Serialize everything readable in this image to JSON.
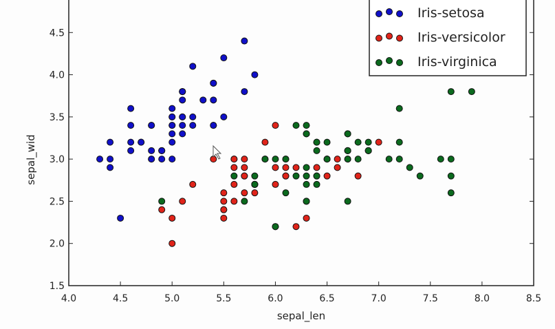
{
  "chart_data": {
    "type": "scatter",
    "title": "",
    "xlabel": "sepal_len",
    "ylabel": "sepal_wid",
    "xlim": [
      4.0,
      8.5
    ],
    "ylim": [
      1.5,
      5.0
    ],
    "xticks": [
      "4.0",
      "4.5",
      "5.0",
      "5.5",
      "6.0",
      "6.5",
      "7.0",
      "7.5",
      "8.0",
      "8.5"
    ],
    "yticks": [
      "1.5",
      "2.0",
      "2.5",
      "3.0",
      "3.5",
      "4.0",
      "4.5"
    ],
    "legend_position": "top-right",
    "series": [
      {
        "name": "Iris-setosa",
        "color": "#1010c8",
        "points": [
          [
            5.1,
            3.5
          ],
          [
            4.9,
            3.0
          ],
          [
            4.7,
            3.2
          ],
          [
            4.6,
            3.1
          ],
          [
            5.0,
            3.6
          ],
          [
            5.4,
            3.9
          ],
          [
            4.6,
            3.4
          ],
          [
            5.0,
            3.4
          ],
          [
            4.4,
            2.9
          ],
          [
            4.9,
            3.1
          ],
          [
            5.4,
            3.7
          ],
          [
            4.8,
            3.4
          ],
          [
            4.8,
            3.0
          ],
          [
            4.3,
            3.0
          ],
          [
            5.8,
            4.0
          ],
          [
            5.7,
            4.4
          ],
          [
            5.4,
            3.9
          ],
          [
            5.1,
            3.5
          ],
          [
            5.7,
            3.8
          ],
          [
            5.1,
            3.8
          ],
          [
            5.4,
            3.4
          ],
          [
            5.1,
            3.7
          ],
          [
            4.6,
            3.6
          ],
          [
            5.1,
            3.3
          ],
          [
            4.8,
            3.4
          ],
          [
            5.0,
            3.0
          ],
          [
            5.0,
            3.4
          ],
          [
            5.2,
            3.5
          ],
          [
            5.2,
            3.4
          ],
          [
            4.7,
            3.2
          ],
          [
            4.8,
            3.1
          ],
          [
            5.4,
            3.4
          ],
          [
            5.2,
            4.1
          ],
          [
            5.5,
            4.2
          ],
          [
            4.9,
            3.1
          ],
          [
            5.0,
            3.2
          ],
          [
            5.5,
            3.5
          ],
          [
            4.9,
            3.1
          ],
          [
            4.4,
            3.0
          ],
          [
            5.1,
            3.4
          ],
          [
            5.0,
            3.5
          ],
          [
            4.5,
            2.3
          ],
          [
            4.4,
            3.2
          ],
          [
            5.0,
            3.5
          ],
          [
            5.1,
            3.8
          ],
          [
            4.8,
            3.0
          ],
          [
            5.1,
            3.8
          ],
          [
            4.6,
            3.2
          ],
          [
            5.3,
            3.7
          ],
          [
            5.0,
            3.3
          ]
        ]
      },
      {
        "name": "Iris-versicolor",
        "color": "#e0241a",
        "points": [
          [
            7.0,
            3.2
          ],
          [
            6.4,
            3.2
          ],
          [
            6.9,
            3.1
          ],
          [
            5.5,
            2.3
          ],
          [
            6.5,
            2.8
          ],
          [
            5.7,
            2.8
          ],
          [
            6.3,
            3.3
          ],
          [
            4.9,
            2.4
          ],
          [
            6.6,
            2.9
          ],
          [
            5.2,
            2.7
          ],
          [
            5.0,
            2.0
          ],
          [
            5.9,
            3.0
          ],
          [
            6.0,
            2.2
          ],
          [
            6.1,
            2.9
          ],
          [
            5.6,
            2.9
          ],
          [
            6.7,
            3.1
          ],
          [
            5.6,
            3.0
          ],
          [
            5.8,
            2.7
          ],
          [
            6.2,
            2.2
          ],
          [
            5.6,
            2.5
          ],
          [
            5.9,
            3.2
          ],
          [
            6.1,
            2.8
          ],
          [
            6.3,
            2.5
          ],
          [
            6.1,
            2.8
          ],
          [
            6.4,
            2.9
          ],
          [
            6.6,
            3.0
          ],
          [
            6.8,
            2.8
          ],
          [
            6.7,
            3.0
          ],
          [
            6.0,
            2.9
          ],
          [
            5.7,
            2.6
          ],
          [
            5.5,
            2.4
          ],
          [
            5.5,
            2.4
          ],
          [
            5.8,
            2.7
          ],
          [
            6.0,
            2.7
          ],
          [
            5.4,
            3.0
          ],
          [
            6.0,
            3.4
          ],
          [
            6.7,
            3.1
          ],
          [
            6.3,
            2.3
          ],
          [
            5.6,
            3.0
          ],
          [
            5.5,
            2.5
          ],
          [
            5.5,
            2.6
          ],
          [
            6.1,
            3.0
          ],
          [
            5.8,
            2.6
          ],
          [
            5.0,
            2.3
          ],
          [
            5.6,
            2.7
          ],
          [
            5.7,
            3.0
          ],
          [
            5.7,
            2.9
          ],
          [
            6.2,
            2.9
          ],
          [
            5.1,
            2.5
          ],
          [
            5.7,
            2.8
          ]
        ]
      },
      {
        "name": "Iris-virginica",
        "color": "#0b6a1e",
        "points": [
          [
            6.3,
            3.3
          ],
          [
            5.8,
            2.7
          ],
          [
            7.1,
            3.0
          ],
          [
            6.3,
            2.9
          ],
          [
            6.5,
            3.0
          ],
          [
            7.6,
            3.0
          ],
          [
            4.9,
            2.5
          ],
          [
            7.3,
            2.9
          ],
          [
            6.7,
            2.5
          ],
          [
            7.2,
            3.6
          ],
          [
            6.5,
            3.2
          ],
          [
            6.4,
            2.7
          ],
          [
            6.8,
            3.0
          ],
          [
            5.7,
            2.5
          ],
          [
            5.8,
            2.8
          ],
          [
            6.4,
            3.2
          ],
          [
            6.5,
            3.0
          ],
          [
            7.7,
            3.8
          ],
          [
            7.7,
            2.6
          ],
          [
            6.0,
            2.2
          ],
          [
            6.9,
            3.2
          ],
          [
            5.6,
            2.8
          ],
          [
            7.7,
            2.8
          ],
          [
            6.3,
            2.7
          ],
          [
            6.7,
            3.3
          ],
          [
            7.2,
            3.2
          ],
          [
            6.2,
            2.8
          ],
          [
            6.1,
            3.0
          ],
          [
            6.4,
            2.8
          ],
          [
            7.2,
            3.0
          ],
          [
            7.4,
            2.8
          ],
          [
            7.9,
            3.8
          ],
          [
            6.4,
            2.8
          ],
          [
            6.3,
            2.8
          ],
          [
            6.1,
            2.6
          ],
          [
            7.7,
            3.0
          ],
          [
            6.3,
            3.4
          ],
          [
            6.4,
            3.1
          ],
          [
            6.0,
            3.0
          ],
          [
            6.9,
            3.1
          ],
          [
            6.7,
            3.1
          ],
          [
            6.9,
            3.1
          ],
          [
            5.8,
            2.7
          ],
          [
            6.8,
            3.2
          ],
          [
            6.7,
            3.3
          ],
          [
            6.7,
            3.0
          ],
          [
            6.3,
            2.5
          ],
          [
            6.5,
            3.0
          ],
          [
            6.2,
            3.4
          ],
          [
            5.9,
            3.0
          ]
        ]
      }
    ]
  }
}
